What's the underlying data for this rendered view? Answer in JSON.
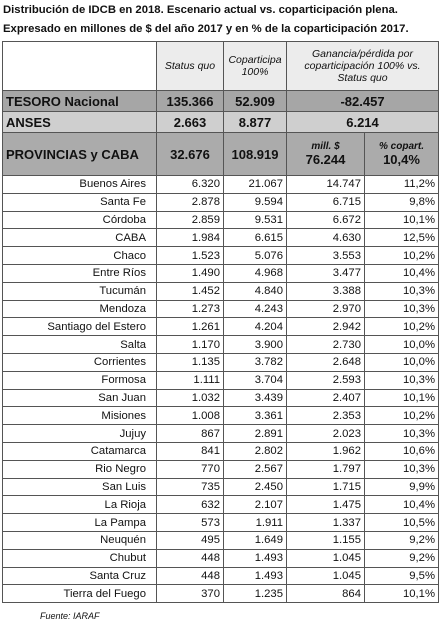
{
  "title": [
    "Distribución de IDCB en 2018. Escenario actual vs. coparticipación plena.",
    "Expresado en millones de $ del año 2017 y en % de la coparticipación 2017."
  ],
  "table": {
    "header": [
      "Status quo",
      "Coparticipa 100%",
      "Ganancia/pérdida por coparticipación 100% vs. Status quo"
    ],
    "summary": [
      {
        "name": "TESORO Nacional",
        "values": [
          "135.366",
          "52.909",
          "-82.457"
        ]
      },
      {
        "name": "ANSES",
        "values": [
          "2.663",
          "8.877",
          "6.214"
        ]
      }
    ],
    "provincias": {
      "name": "PROVINCIAS y CABA",
      "values": [
        "32.676",
        "108.919"
      ],
      "sublabels": [
        "mill. $",
        "% copart."
      ],
      "gain": [
        "76.244",
        "10,4%"
      ]
    },
    "rows": [
      [
        "Buenos Aires",
        "6.320",
        "21.067",
        "14.747",
        "11,2%"
      ],
      [
        "Santa Fe",
        "2.878",
        "9.594",
        "6.715",
        "9,8%"
      ],
      [
        "Córdoba",
        "2.859",
        "9.531",
        "6.672",
        "10,1%"
      ],
      [
        "CABA",
        "1.984",
        "6.615",
        "4.630",
        "12,5%"
      ],
      [
        "Chaco",
        "1.523",
        "5.076",
        "3.553",
        "10,2%"
      ],
      [
        "Entre Ríos",
        "1.490",
        "4.968",
        "3.477",
        "10,4%"
      ],
      [
        "Tucumán",
        "1.452",
        "4.840",
        "3.388",
        "10,3%"
      ],
      [
        "Mendoza",
        "1.273",
        "4.243",
        "2.970",
        "10,3%"
      ],
      [
        "Santiago del Estero",
        "1.261",
        "4.204",
        "2.942",
        "10,2%"
      ],
      [
        "Salta",
        "1.170",
        "3.900",
        "2.730",
        "10,0%"
      ],
      [
        "Corrientes",
        "1.135",
        "3.782",
        "2.648",
        "10,0%"
      ],
      [
        "Formosa",
        "1.111",
        "3.704",
        "2.593",
        "10,3%"
      ],
      [
        "San Juan",
        "1.032",
        "3.439",
        "2.407",
        "10,1%"
      ],
      [
        "Misiones",
        "1.008",
        "3.361",
        "2.353",
        "10,2%"
      ],
      [
        "Jujuy",
        "867",
        "2.891",
        "2.023",
        "10,3%"
      ],
      [
        "Catamarca",
        "841",
        "2.802",
        "1.962",
        "10,6%"
      ],
      [
        "Rio Negro",
        "770",
        "2.567",
        "1.797",
        "10,3%"
      ],
      [
        "San Luis",
        "735",
        "2.450",
        "1.715",
        "9,9%"
      ],
      [
        "La Rioja",
        "632",
        "2.107",
        "1.475",
        "10,4%"
      ],
      [
        "La Pampa",
        "573",
        "1.911",
        "1.337",
        "10,5%"
      ],
      [
        "Neuquén",
        "495",
        "1.649",
        "1.155",
        "9,2%"
      ],
      [
        "Chubut",
        "448",
        "1.493",
        "1.045",
        "9,2%"
      ],
      [
        "Santa Cruz",
        "448",
        "1.493",
        "1.045",
        "9,5%"
      ],
      [
        "Tierra del Fuego",
        "370",
        "1.235",
        "864",
        "10,1%"
      ]
    ]
  },
  "source": "Fuente: IARAF"
}
